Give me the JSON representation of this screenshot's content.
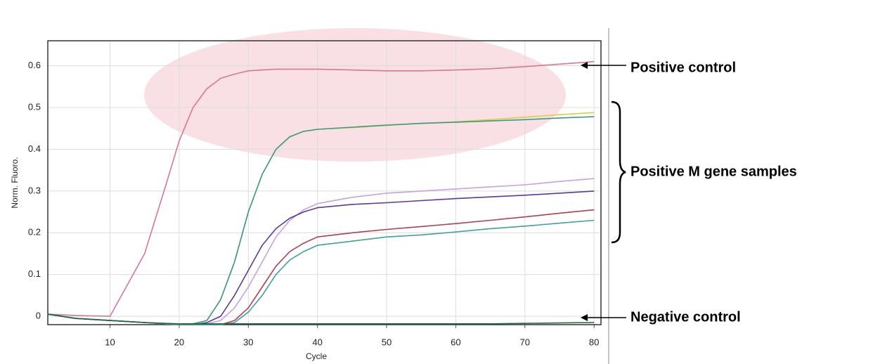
{
  "chart_data": {
    "type": "line",
    "x_label": "Cycle",
    "y_label": "Norm. Fluoro.",
    "x": [
      1,
      5,
      10,
      15,
      18,
      20,
      22,
      24,
      26,
      28,
      30,
      32,
      34,
      36,
      38,
      40,
      45,
      50,
      55,
      60,
      65,
      70,
      75,
      80
    ],
    "series": [
      {
        "color": "#d9788f",
        "values": [
          0.005,
          0.002,
          0,
          0.15,
          0.31,
          0.42,
          0.5,
          0.545,
          0.57,
          0.58,
          0.588,
          0.59,
          0.592,
          0.592,
          0.592,
          0.592,
          0.59,
          0.588,
          0.588,
          0.59,
          0.593,
          0.598,
          0.604,
          0.61
        ]
      },
      {
        "color": "#d8d040",
        "values": [
          0.005,
          -0.005,
          -0.01,
          -0.015,
          -0.018,
          -0.02,
          -0.018,
          -0.01,
          0.04,
          0.13,
          0.25,
          0.34,
          0.4,
          0.43,
          0.443,
          0.448,
          0.452,
          0.457,
          0.462,
          0.466,
          0.471,
          0.477,
          0.483,
          0.488
        ]
      },
      {
        "color": "#3a9a8a",
        "values": [
          0.005,
          -0.005,
          -0.01,
          -0.015,
          -0.018,
          -0.02,
          -0.018,
          -0.01,
          0.04,
          0.13,
          0.25,
          0.34,
          0.4,
          0.43,
          0.443,
          0.448,
          0.453,
          0.458,
          0.462,
          0.465,
          0.468,
          0.471,
          0.475,
          0.478
        ]
      },
      {
        "color": "#c9a0e0",
        "values": [
          0.005,
          -0.005,
          -0.01,
          -0.015,
          -0.018,
          -0.02,
          -0.02,
          -0.018,
          -0.01,
          0.02,
          0.07,
          0.13,
          0.19,
          0.23,
          0.255,
          0.27,
          0.285,
          0.295,
          0.3,
          0.305,
          0.31,
          0.315,
          0.323,
          0.33
        ]
      },
      {
        "color": "#5a3a9a",
        "values": [
          0.005,
          -0.005,
          -0.01,
          -0.015,
          -0.018,
          -0.02,
          -0.02,
          -0.015,
          0.0,
          0.05,
          0.11,
          0.17,
          0.21,
          0.235,
          0.25,
          0.26,
          0.268,
          0.272,
          0.277,
          0.282,
          0.286,
          0.29,
          0.295,
          0.3
        ]
      },
      {
        "color": "#b04050",
        "values": [
          0.005,
          -0.005,
          -0.01,
          -0.015,
          -0.018,
          -0.02,
          -0.02,
          -0.02,
          -0.02,
          -0.01,
          0.02,
          0.07,
          0.12,
          0.155,
          0.175,
          0.19,
          0.2,
          0.208,
          0.215,
          0.222,
          0.23,
          0.238,
          0.247,
          0.255
        ]
      },
      {
        "color": "#40a0a0",
        "values": [
          0.005,
          -0.005,
          -0.01,
          -0.015,
          -0.018,
          -0.02,
          -0.02,
          -0.02,
          -0.02,
          -0.015,
          0.01,
          0.05,
          0.1,
          0.135,
          0.155,
          0.17,
          0.18,
          0.19,
          0.195,
          0.202,
          0.21,
          0.216,
          0.223,
          0.23
        ]
      },
      {
        "color": "#1f6a3a",
        "values": [
          0.005,
          -0.005,
          -0.01,
          -0.015,
          -0.017,
          -0.018,
          -0.018,
          -0.018,
          -0.018,
          -0.018,
          -0.018,
          -0.018,
          -0.018,
          -0.018,
          -0.018,
          -0.018,
          -0.018,
          -0.018,
          -0.018,
          -0.018,
          -0.018,
          -0.017,
          -0.016,
          -0.015
        ]
      }
    ],
    "xlim": [
      1,
      81
    ],
    "xticks": [
      10,
      20,
      30,
      40,
      50,
      60,
      70,
      80
    ],
    "ylim": [
      -0.02,
      0.66
    ],
    "yticks": [
      0,
      0.1,
      0.2,
      0.3,
      0.4,
      0.5,
      0.6
    ],
    "grid": true,
    "annotations": [
      "Positive control",
      "Positive M gene samples",
      "Negative control"
    ]
  }
}
